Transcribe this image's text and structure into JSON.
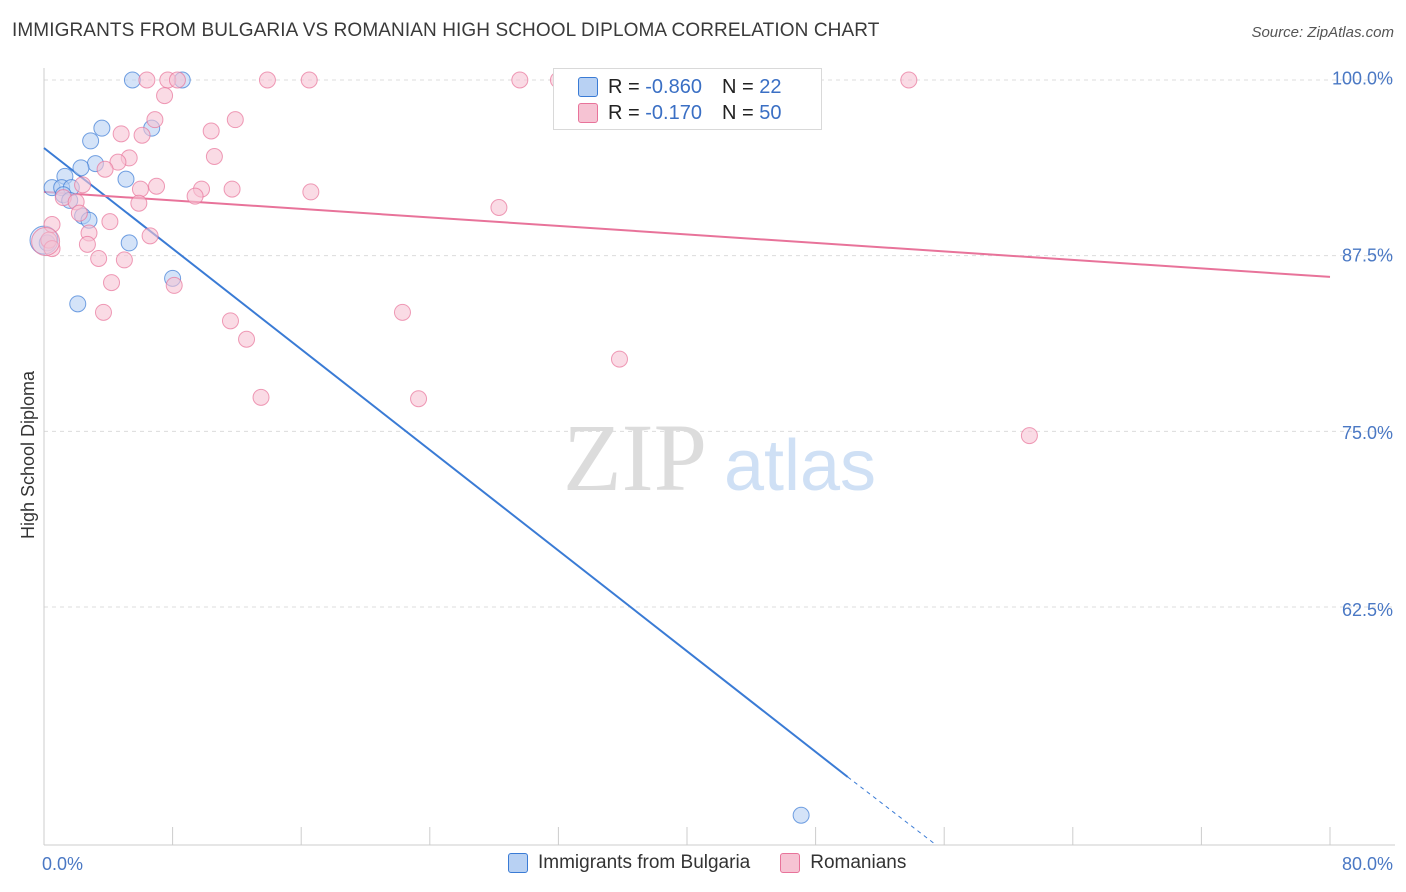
{
  "title": "IMMIGRANTS FROM BULGARIA VS ROMANIAN HIGH SCHOOL DIPLOMA CORRELATION CHART",
  "source": "Source: ZipAtlas.com",
  "watermark": {
    "zip": "ZIP",
    "atlas": "atlas"
  },
  "colors": {
    "blue": "#3a7bd5",
    "blue_fill": "#b8d1f3",
    "pink": "#e8739a",
    "pink_fill": "#f6c3d3",
    "axis_label": "#4a78c4"
  },
  "stats": {
    "series1": {
      "r_label": "R =",
      "r_value": "-0.860",
      "n_label": "N =",
      "n_value": "22"
    },
    "series2": {
      "r_label": "R =",
      "r_value": "-0.170",
      "n_label": "N =",
      "n_value": "50"
    }
  },
  "legend": {
    "series1": "Immigrants from Bulgaria",
    "series2": "Romanians"
  },
  "chart_data": {
    "type": "scatter",
    "xlabel": "",
    "ylabel": "High School Diploma",
    "xlim": [
      0,
      80
    ],
    "ylim": [
      47,
      101
    ],
    "x_tick_labels": [
      {
        "value": 0,
        "label": "0.0%"
      },
      {
        "value": 80,
        "label": "80.0%"
      }
    ],
    "y_tick_labels": [
      {
        "value": 100,
        "label": "100.0%"
      },
      {
        "value": 87.5,
        "label": "87.5%"
      },
      {
        "value": 75,
        "label": "75.0%"
      },
      {
        "value": 62.5,
        "label": "62.5%"
      }
    ],
    "gridlines_y": [
      101,
      88.6,
      76.2,
      63.8
    ],
    "series": [
      {
        "name": "Immigrants from Bulgaria",
        "color": "#3a7bd5",
        "points": [
          [
            5.5,
            101
          ],
          [
            8.6,
            101
          ],
          [
            3.6,
            97.6
          ],
          [
            6.7,
            97.6
          ],
          [
            2.9,
            96.7
          ],
          [
            3.2,
            95.1
          ],
          [
            2.3,
            94.8
          ],
          [
            5.1,
            94.0
          ],
          [
            1.3,
            94.2
          ],
          [
            0.5,
            93.4
          ],
          [
            1.1,
            93.4
          ],
          [
            1.7,
            93.4
          ],
          [
            1.2,
            92.9
          ],
          [
            1.6,
            92.5
          ],
          [
            2.4,
            91.4
          ],
          [
            2.8,
            91.1
          ],
          [
            0.2,
            89.5
          ],
          [
            5.3,
            89.5
          ],
          [
            8.0,
            87.0
          ],
          [
            2.1,
            85.2
          ],
          [
            47.1,
            49.1
          ],
          [
            0.0,
            89.7
          ]
        ],
        "trend": {
          "x": [
            0,
            50
          ],
          "y": [
            96.2,
            51.8
          ],
          "dash_to": [
            55.5,
            47.0
          ]
        }
      },
      {
        "name": "Romanians",
        "color": "#e8739a",
        "points": [
          [
            6.4,
            101
          ],
          [
            7.7,
            101
          ],
          [
            8.3,
            101
          ],
          [
            13.9,
            101
          ],
          [
            16.5,
            101
          ],
          [
            29.6,
            101
          ],
          [
            32.0,
            101
          ],
          [
            53.8,
            101
          ],
          [
            7.5,
            99.9
          ],
          [
            6.9,
            98.2
          ],
          [
            11.9,
            98.2
          ],
          [
            10.4,
            97.4
          ],
          [
            4.8,
            97.2
          ],
          [
            6.1,
            97.1
          ],
          [
            10.6,
            95.6
          ],
          [
            5.3,
            95.5
          ],
          [
            4.6,
            95.2
          ],
          [
            3.8,
            94.7
          ],
          [
            2.4,
            93.6
          ],
          [
            7.0,
            93.5
          ],
          [
            6.0,
            93.3
          ],
          [
            9.8,
            93.3
          ],
          [
            11.7,
            93.3
          ],
          [
            16.6,
            93.1
          ],
          [
            9.4,
            92.8
          ],
          [
            1.2,
            92.7
          ],
          [
            2.0,
            92.4
          ],
          [
            5.9,
            92.3
          ],
          [
            28.3,
            92.0
          ],
          [
            2.2,
            91.6
          ],
          [
            4.1,
            91.0
          ],
          [
            0.5,
            90.8
          ],
          [
            2.8,
            90.2
          ],
          [
            6.6,
            90.0
          ],
          [
            0.3,
            89.7
          ],
          [
            2.7,
            89.4
          ],
          [
            0.5,
            89.1
          ],
          [
            3.4,
            88.4
          ],
          [
            5.0,
            88.3
          ],
          [
            4.2,
            86.7
          ],
          [
            8.1,
            86.5
          ],
          [
            3.7,
            84.6
          ],
          [
            22.3,
            84.6
          ],
          [
            11.6,
            84.0
          ],
          [
            12.6,
            82.7
          ],
          [
            35.8,
            81.3
          ],
          [
            13.5,
            78.6
          ],
          [
            23.3,
            78.5
          ],
          [
            61.3,
            75.9
          ],
          [
            0.1,
            89.6
          ]
        ],
        "trend": {
          "x": [
            0,
            80
          ],
          "y": [
            93.1,
            87.1
          ]
        }
      }
    ]
  }
}
